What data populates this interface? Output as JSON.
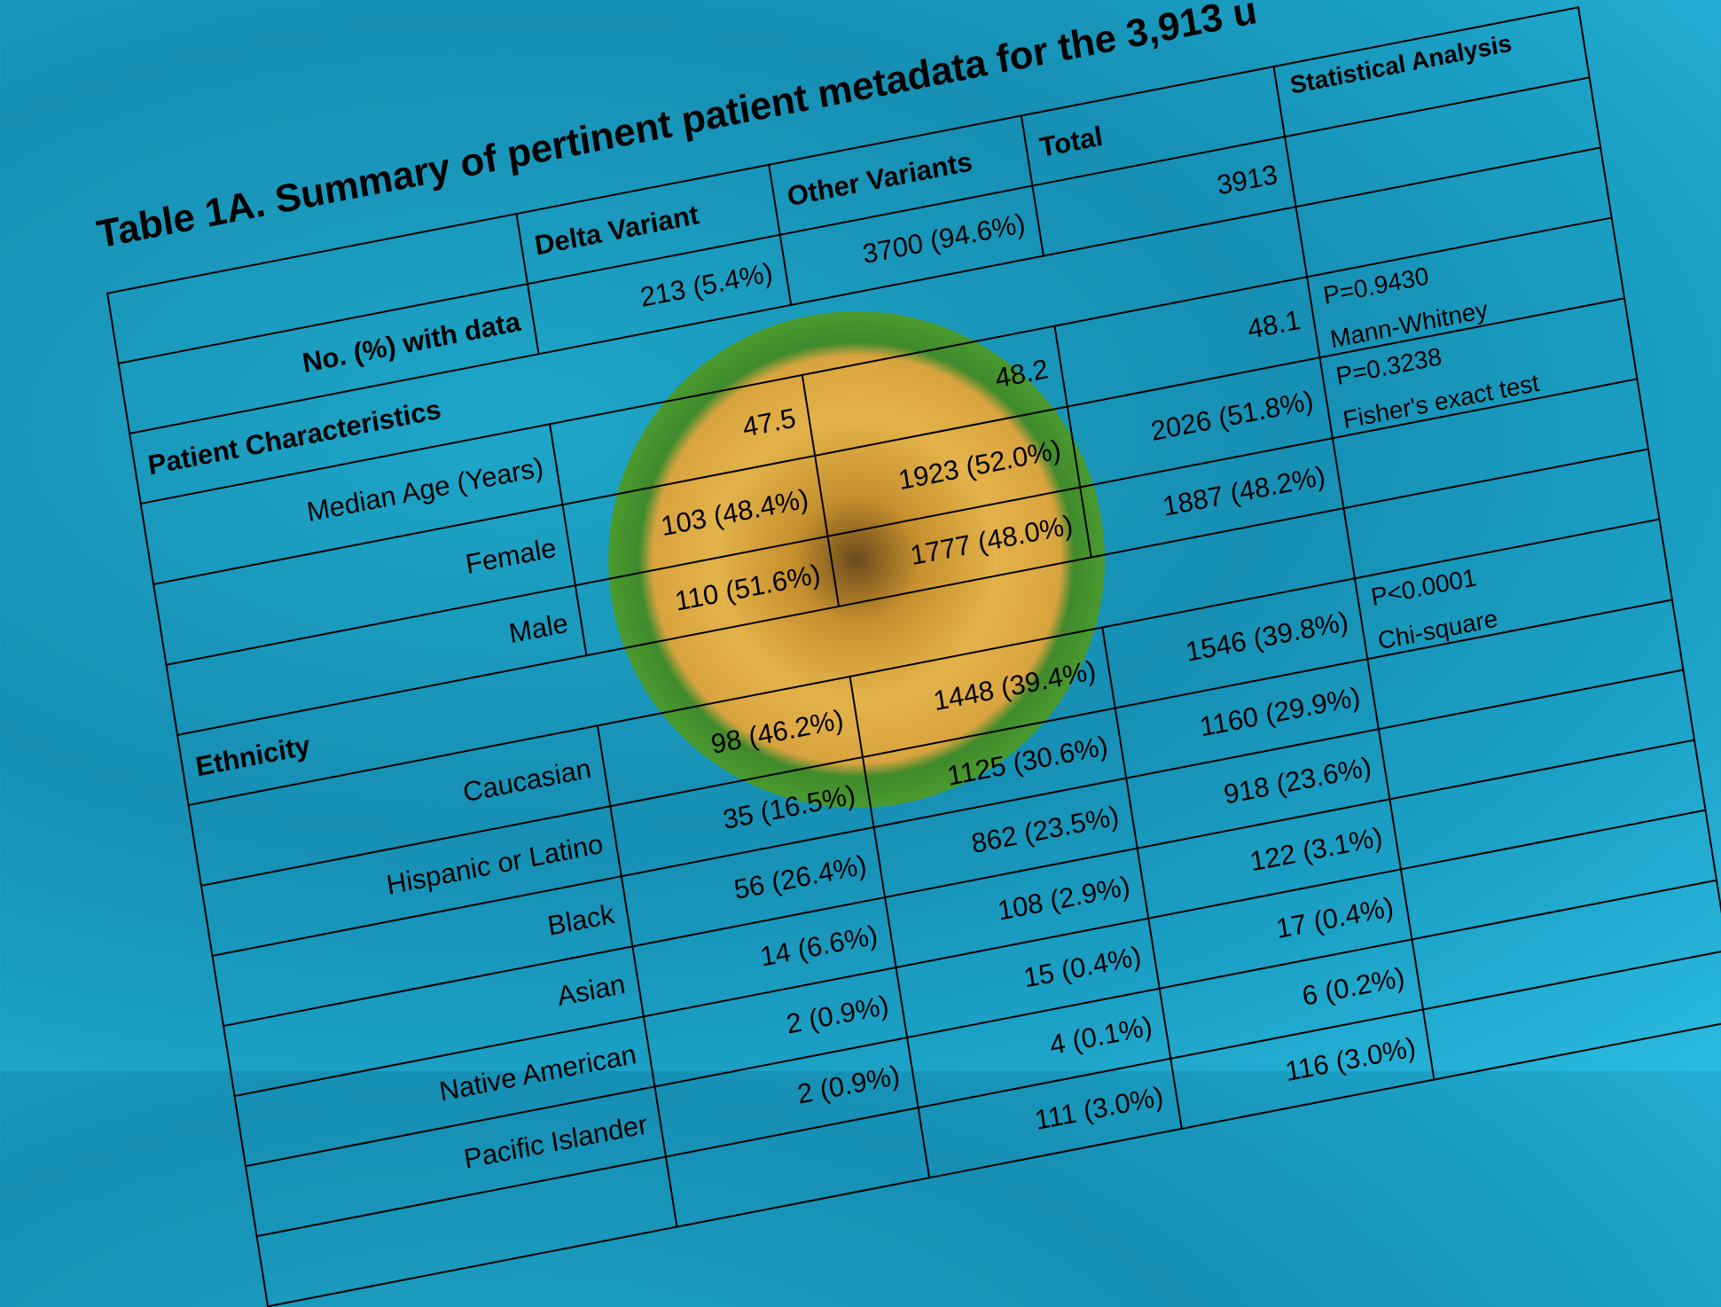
{
  "title": "Table 1A. Summary of pertinent patient metadata for the 3,913 u",
  "columns": [
    "",
    "Delta Variant",
    "Other Variants",
    "Total",
    "Statistical Analysis"
  ],
  "with_data": {
    "label": "No. (%) with data",
    "delta": "213 (5.4%)",
    "other": "3700 (94.6%)",
    "total": "3913"
  },
  "sections": [
    {
      "heading": "Patient Characteristics",
      "rows": [
        {
          "label": "Median Age (Years)",
          "delta": "47.5",
          "other": "48.2",
          "total": "48.1",
          "p": "P=0.9430",
          "test": "Mann-Whitney"
        },
        {
          "label": "Female",
          "delta": "103 (48.4%)",
          "other": "1923 (52.0%)",
          "total": "2026 (51.8%)",
          "p": "P=0.3238",
          "test": "Fisher's exact test"
        },
        {
          "label": "Male",
          "delta": "110 (51.6%)",
          "other": "1777 (48.0%)",
          "total": "1887 (48.2%)"
        }
      ]
    },
    {
      "heading": "Ethnicity",
      "rows": [
        {
          "label": "Caucasian",
          "delta": "98 (46.2%)",
          "other": "1448 (39.4%)",
          "total": "1546 (39.8%)",
          "p": "P<0.0001",
          "test": "Chi-square"
        },
        {
          "label": "Hispanic or Latino",
          "delta": "35 (16.5%)",
          "other": "1125 (30.6%)",
          "total": "1160 (29.9%)"
        },
        {
          "label": "Black",
          "delta": "56 (26.4%)",
          "other": "862 (23.5%)",
          "total": "918 (23.6%)"
        },
        {
          "label": "Asian",
          "delta": "14 (6.6%)",
          "other": "108 (2.9%)",
          "total": "122 (3.1%)"
        },
        {
          "label": "Native American",
          "delta": "2 (0.9%)",
          "other": "15 (0.4%)",
          "total": "17 (0.4%)"
        },
        {
          "label": "Pacific Islander",
          "delta": "2 (0.9%)",
          "other": "4 (0.1%)",
          "total": "6 (0.2%)"
        },
        {
          "label": "",
          "delta": "",
          "other": "111 (3.0%)",
          "total": "116 (3.0%)"
        }
      ]
    }
  ],
  "colors": {
    "background": "#1b9fc4",
    "virus_core": "#e3b24a",
    "virus_spikes": "#4fa02f"
  }
}
